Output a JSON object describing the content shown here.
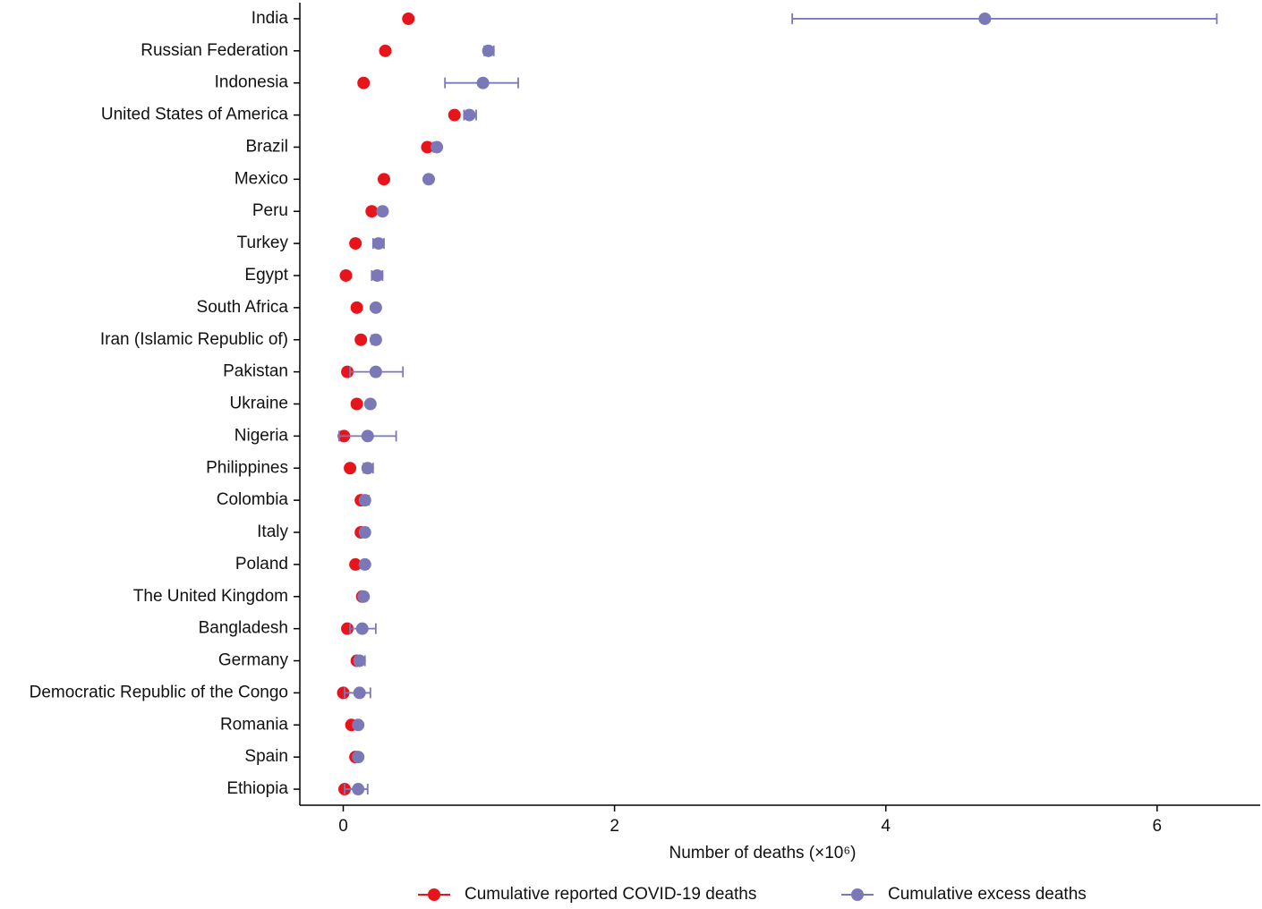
{
  "chart_data": {
    "type": "dot_errorbar",
    "orientation": "horizontal",
    "x_label": "Number of deaths (×10⁶)",
    "categories": [
      "India",
      "Russian Federation",
      "Indonesia",
      "United States of America",
      "Brazil",
      "Mexico",
      "Peru",
      "Turkey",
      "Egypt",
      "South Africa",
      "Iran (Islamic Republic of)",
      "Pakistan",
      "Ukraine",
      "Nigeria",
      "Philippines",
      "Colombia",
      "Italy",
      "Poland",
      "The United Kingdom",
      "Bangladesh",
      "Germany",
      "Democratic Republic of the Congo",
      "Romania",
      "Spain",
      "Ethiopia"
    ],
    "series": [
      {
        "name": "Cumulative reported COVID-19 deaths",
        "color": "#e8141c",
        "values": [
          0.48,
          0.31,
          0.15,
          0.82,
          0.62,
          0.3,
          0.21,
          0.09,
          0.02,
          0.1,
          0.13,
          0.03,
          0.1,
          0.005,
          0.05,
          0.13,
          0.13,
          0.09,
          0.14,
          0.03,
          0.1,
          0.0,
          0.06,
          0.09,
          0.01
        ]
      },
      {
        "name": "Cumulative excess deaths",
        "color": "#7b78b8",
        "values": [
          4.73,
          1.07,
          1.03,
          0.93,
          0.69,
          0.63,
          0.29,
          0.26,
          0.25,
          0.24,
          0.24,
          0.24,
          0.2,
          0.18,
          0.18,
          0.16,
          0.16,
          0.16,
          0.15,
          0.14,
          0.12,
          0.12,
          0.11,
          0.11,
          0.11
        ],
        "lower": [
          3.31,
          1.04,
          0.75,
          0.89,
          0.66,
          0.61,
          0.27,
          0.22,
          0.21,
          0.22,
          0.21,
          0.05,
          0.18,
          -0.03,
          0.15,
          0.14,
          0.13,
          0.14,
          0.13,
          0.05,
          0.09,
          0.01,
          0.09,
          0.09,
          0.01
        ],
        "upper": [
          6.44,
          1.11,
          1.29,
          0.98,
          0.71,
          0.65,
          0.31,
          0.3,
          0.29,
          0.26,
          0.26,
          0.44,
          0.22,
          0.39,
          0.22,
          0.19,
          0.18,
          0.18,
          0.17,
          0.24,
          0.16,
          0.2,
          0.13,
          0.13,
          0.18
        ]
      }
    ],
    "xlim": [
      -0.32,
      6.76
    ],
    "xticks": [
      0,
      2,
      4,
      6
    ],
    "legend": "bottom"
  }
}
